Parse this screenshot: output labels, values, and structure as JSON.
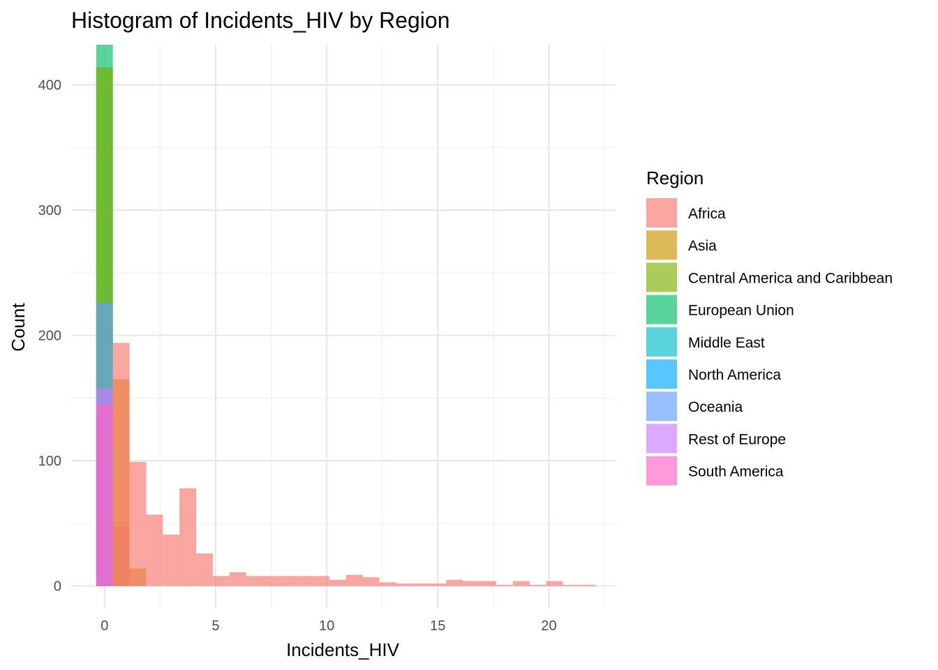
{
  "chart_data": {
    "type": "histogram",
    "title": "Histogram of Incidents_HIV by Region",
    "xlabel": "Incidents_HIV",
    "ylabel": "Count",
    "xlim": [
      -1.5,
      23
    ],
    "ylim": [
      -18,
      432
    ],
    "x_ticks": [
      0,
      5,
      10,
      15,
      20
    ],
    "y_ticks": [
      0,
      100,
      200,
      300,
      400
    ],
    "grid": true,
    "stacked": false,
    "opacity": 0.65,
    "bin_width": 0.75,
    "legend": {
      "title": "Region",
      "placement": "right",
      "entries": [
        {
          "name": "Africa",
          "color": "#F8766D"
        },
        {
          "name": "Asia",
          "color": "#CD9600"
        },
        {
          "name": "Central America and Caribbean",
          "color": "#7CAE00"
        },
        {
          "name": "European Union",
          "color": "#00BE67"
        },
        {
          "name": "Middle East",
          "color": "#00BFC4"
        },
        {
          "name": "North America",
          "color": "#00A9FF"
        },
        {
          "name": "Oceania",
          "color": "#619CFF"
        },
        {
          "name": "Rest of Europe",
          "color": "#C77CFF"
        },
        {
          "name": "South America",
          "color": "#FF61C3"
        }
      ]
    },
    "series": [
      {
        "name": "European Union",
        "color": "#00BE67",
        "bars": [
          {
            "x0": -0.375,
            "x1": 0.375,
            "count": 432
          }
        ]
      },
      {
        "name": "Central America and Caribbean",
        "color": "#7CAE00",
        "bars": [
          {
            "x0": -0.375,
            "x1": 0.375,
            "count": 414
          }
        ]
      },
      {
        "name": "Oceania",
        "color": "#619CFF",
        "bars": [
          {
            "x0": -0.375,
            "x1": 0.375,
            "count": 226
          }
        ]
      },
      {
        "name": "Rest of Europe",
        "color": "#C77CFF",
        "bars": [
          {
            "x0": -0.375,
            "x1": 0.375,
            "count": 158
          }
        ]
      },
      {
        "name": "South America",
        "color": "#FF61C3",
        "bars": [
          {
            "x0": -0.375,
            "x1": 0.375,
            "count": 145
          },
          {
            "x0": 0.375,
            "x1": 1.125,
            "count": 48
          }
        ]
      },
      {
        "name": "Asia",
        "color": "#CD9600",
        "bars": [
          {
            "x0": 0.375,
            "x1": 1.125,
            "count": 165
          },
          {
            "x0": 1.125,
            "x1": 1.875,
            "count": 14
          }
        ]
      },
      {
        "name": "Africa",
        "color": "#F8766D",
        "bars": [
          {
            "x0": 0.375,
            "x1": 1.125,
            "count": 194
          },
          {
            "x0": 1.125,
            "x1": 1.875,
            "count": 99
          },
          {
            "x0": 1.875,
            "x1": 2.625,
            "count": 57
          },
          {
            "x0": 2.625,
            "x1": 3.375,
            "count": 41
          },
          {
            "x0": 3.375,
            "x1": 4.125,
            "count": 78
          },
          {
            "x0": 4.125,
            "x1": 4.875,
            "count": 26
          },
          {
            "x0": 4.875,
            "x1": 5.625,
            "count": 8
          },
          {
            "x0": 5.625,
            "x1": 6.375,
            "count": 11
          },
          {
            "x0": 6.375,
            "x1": 7.125,
            "count": 8
          },
          {
            "x0": 7.125,
            "x1": 7.875,
            "count": 8
          },
          {
            "x0": 7.875,
            "x1": 8.625,
            "count": 8
          },
          {
            "x0": 8.625,
            "x1": 9.375,
            "count": 8
          },
          {
            "x0": 9.375,
            "x1": 10.125,
            "count": 8
          },
          {
            "x0": 10.125,
            "x1": 10.875,
            "count": 5
          },
          {
            "x0": 10.875,
            "x1": 11.625,
            "count": 9
          },
          {
            "x0": 11.625,
            "x1": 12.375,
            "count": 7
          },
          {
            "x0": 12.375,
            "x1": 13.125,
            "count": 3
          },
          {
            "x0": 13.125,
            "x1": 13.875,
            "count": 2
          },
          {
            "x0": 13.875,
            "x1": 14.625,
            "count": 2
          },
          {
            "x0": 14.625,
            "x1": 15.375,
            "count": 2
          },
          {
            "x0": 15.375,
            "x1": 16.125,
            "count": 5
          },
          {
            "x0": 16.125,
            "x1": 16.875,
            "count": 4
          },
          {
            "x0": 16.875,
            "x1": 17.625,
            "count": 4
          },
          {
            "x0": 17.625,
            "x1": 18.375,
            "count": 1
          },
          {
            "x0": 18.375,
            "x1": 19.125,
            "count": 4
          },
          {
            "x0": 19.125,
            "x1": 19.875,
            "count": 1
          },
          {
            "x0": 19.875,
            "x1": 20.625,
            "count": 4
          },
          {
            "x0": 20.625,
            "x1": 21.375,
            "count": 1
          },
          {
            "x0": 21.375,
            "x1": 22.125,
            "count": 1
          }
        ]
      }
    ]
  }
}
